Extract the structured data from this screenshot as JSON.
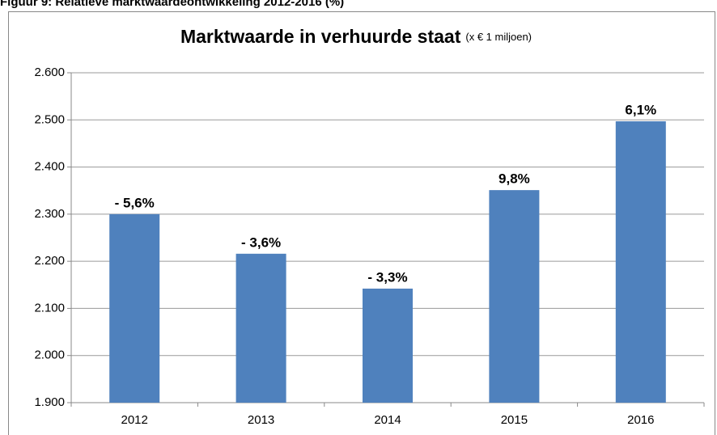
{
  "chart_data": {
    "type": "bar",
    "caption": "Figuur 9: Relatieve marktwaardeontwikkeling 2012-2016 (%)",
    "title": "Marktwaarde in verhuurde staat",
    "subtitle": "(x € 1 miljoen)",
    "categories": [
      "2012",
      "2013",
      "2014",
      "2015",
      "2016"
    ],
    "values": [
      2300,
      2216,
      2142,
      2351,
      2497
    ],
    "annotations": [
      "- 5,6%",
      "- 3,6%",
      "- 3,3%",
      "9,8%",
      "6,1%"
    ],
    "color": "#4f81bd",
    "ylim": [
      1900,
      2600
    ],
    "yticks": [
      {
        "value": 1900,
        "label": "1.900"
      },
      {
        "value": 2000,
        "label": "2.000"
      },
      {
        "value": 2100,
        "label": "2.100"
      },
      {
        "value": 2200,
        "label": "2.200"
      },
      {
        "value": 2300,
        "label": "2.300"
      },
      {
        "value": 2400,
        "label": "2.400"
      },
      {
        "value": 2500,
        "label": "2.500"
      },
      {
        "value": 2600,
        "label": "2.600"
      }
    ],
    "grid": true
  }
}
